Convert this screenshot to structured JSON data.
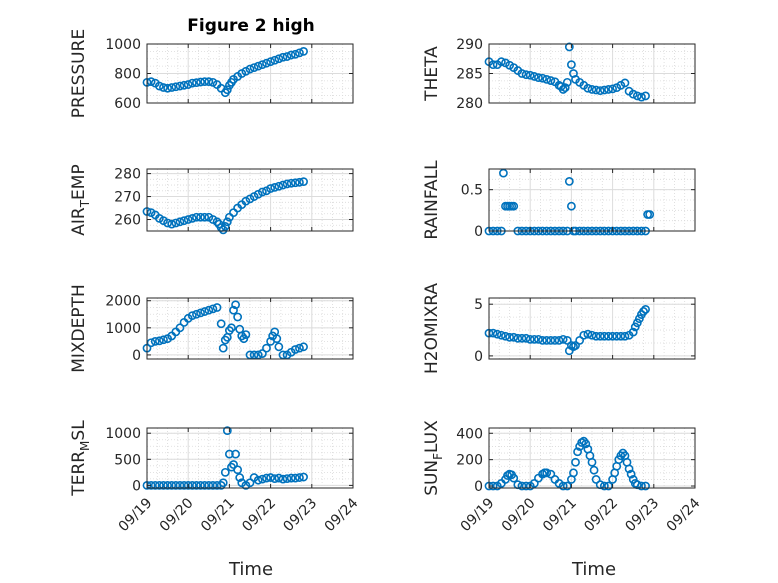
{
  "title": "Figure 2 high",
  "marker_color": "#0072BD",
  "x_tick_labels": [
    "09/19",
    "09/20",
    "09/21",
    "09/22",
    "09/23",
    "09/24"
  ],
  "chart_data": [
    {
      "type": "scatter",
      "name": "pressure",
      "title": "Figure 2 high",
      "ylabel": "PRESSURE",
      "ylim": [
        600,
        1000
      ],
      "yticks": [
        600,
        800,
        1000
      ],
      "ytick_labels": [
        "600",
        "800",
        "1000"
      ],
      "xlim": [
        0,
        5
      ],
      "grid": true,
      "x": [
        0,
        0.1,
        0.2,
        0.3,
        0.4,
        0.5,
        0.6,
        0.7,
        0.8,
        0.9,
        1.0,
        1.1,
        1.2,
        1.3,
        1.4,
        1.5,
        1.6,
        1.7,
        1.8,
        1.9,
        1.95,
        2.0,
        2.05,
        2.1,
        2.2,
        2.3,
        2.4,
        2.5,
        2.6,
        2.7,
        2.8,
        2.9,
        3.0,
        3.1,
        3.2,
        3.3,
        3.4,
        3.5,
        3.6,
        3.7,
        3.8
      ],
      "y": [
        740,
        745,
        735,
        715,
        705,
        700,
        705,
        710,
        715,
        720,
        725,
        735,
        738,
        742,
        745,
        745,
        740,
        725,
        700,
        670,
        690,
        720,
        740,
        760,
        780,
        800,
        815,
        830,
        840,
        850,
        860,
        870,
        880,
        890,
        900,
        910,
        915,
        925,
        930,
        940,
        950
      ]
    },
    {
      "type": "scatter",
      "name": "theta",
      "ylabel": "THETA",
      "ylim": [
        280,
        290
      ],
      "yticks": [
        280,
        285,
        290
      ],
      "ytick_labels": [
        "280",
        "285",
        "290"
      ],
      "xlim": [
        0,
        5
      ],
      "grid": true,
      "x": [
        0,
        0.1,
        0.2,
        0.3,
        0.4,
        0.5,
        0.6,
        0.7,
        0.8,
        0.9,
        1.0,
        1.1,
        1.2,
        1.3,
        1.4,
        1.5,
        1.6,
        1.7,
        1.75,
        1.8,
        1.85,
        1.9,
        1.95,
        2.0,
        2.05,
        2.1,
        2.2,
        2.3,
        2.4,
        2.5,
        2.6,
        2.7,
        2.8,
        2.9,
        3.0,
        3.1,
        3.2,
        3.3,
        3.4,
        3.5,
        3.6,
        3.7,
        3.8
      ],
      "y": [
        287,
        286.5,
        286.5,
        287,
        286.8,
        286.4,
        286,
        285.5,
        285,
        284.8,
        284.7,
        284.5,
        284.3,
        284.2,
        284,
        283.8,
        283.6,
        283,
        282.8,
        282.3,
        282.6,
        283.5,
        289.5,
        286.5,
        285,
        284,
        283.5,
        283,
        282.5,
        282.3,
        282.2,
        282.1,
        282.2,
        282.3,
        282.4,
        282.6,
        283,
        283.4,
        282,
        281.5,
        281.2,
        281,
        281.2
      ]
    },
    {
      "type": "scatter",
      "name": "air_temp",
      "ylabel": "AIR",
      "ylabel_sub": "T",
      "ylabel_tail": "EMP",
      "ylim": [
        255,
        282
      ],
      "yticks": [
        260,
        270,
        280
      ],
      "ytick_labels": [
        "260",
        "270",
        "280"
      ],
      "xlim": [
        0,
        5
      ],
      "grid": true,
      "x": [
        0,
        0.1,
        0.2,
        0.3,
        0.4,
        0.5,
        0.6,
        0.7,
        0.8,
        0.9,
        1.0,
        1.1,
        1.2,
        1.3,
        1.4,
        1.5,
        1.6,
        1.7,
        1.75,
        1.8,
        1.85,
        1.9,
        1.95,
        2.0,
        2.1,
        2.2,
        2.3,
        2.4,
        2.5,
        2.6,
        2.7,
        2.8,
        2.9,
        3.0,
        3.1,
        3.2,
        3.3,
        3.4,
        3.5,
        3.6,
        3.7,
        3.8
      ],
      "y": [
        263.5,
        263,
        262,
        260.5,
        259.5,
        258.5,
        258,
        258.5,
        259,
        259.5,
        260,
        260.5,
        261,
        261,
        261,
        261,
        260,
        259,
        258,
        256.5,
        255.5,
        257,
        259,
        261,
        263,
        265,
        266.5,
        268,
        269,
        270,
        271,
        272,
        272.5,
        273.5,
        274,
        274.5,
        275,
        275.5,
        275.8,
        276,
        276.2,
        276.5
      ]
    },
    {
      "type": "scatter",
      "name": "rainfall",
      "ylabel": "RAINFALL",
      "ylim": [
        0,
        0.75
      ],
      "yticks": [
        0,
        0.5
      ],
      "ytick_labels": [
        "0",
        "0.5"
      ],
      "xlim": [
        0,
        5
      ],
      "grid": true,
      "x": [
        0,
        0.1,
        0.2,
        0.3,
        0.35,
        0.4,
        0.45,
        0.5,
        0.55,
        0.6,
        0.7,
        0.8,
        0.9,
        1.0,
        1.1,
        1.2,
        1.3,
        1.4,
        1.5,
        1.6,
        1.7,
        1.8,
        1.9,
        1.95,
        2.0,
        2.05,
        2.1,
        2.2,
        2.3,
        2.4,
        2.5,
        2.6,
        2.7,
        2.8,
        2.9,
        3.0,
        3.1,
        3.2,
        3.3,
        3.4,
        3.5,
        3.6,
        3.7,
        3.8,
        3.85,
        3.9
      ],
      "y": [
        0,
        0,
        0,
        0,
        0.7,
        0.3,
        0.3,
        0.3,
        0.3,
        0.3,
        0,
        0,
        0,
        0,
        0,
        0,
        0,
        0,
        0,
        0,
        0,
        0,
        0,
        0.6,
        0.3,
        0,
        0,
        0,
        0,
        0,
        0,
        0,
        0,
        0,
        0,
        0,
        0,
        0,
        0,
        0,
        0,
        0,
        0,
        0,
        0.2,
        0.2
      ]
    },
    {
      "type": "scatter",
      "name": "mixdepth",
      "ylabel": "MIXDEPTH",
      "ylim": [
        -150,
        2100
      ],
      "yticks": [
        0,
        1000,
        2000
      ],
      "ytick_labels": [
        "0",
        "1000",
        "2000"
      ],
      "xlim": [
        0,
        5
      ],
      "grid": true,
      "x": [
        0,
        0.1,
        0.2,
        0.3,
        0.4,
        0.5,
        0.6,
        0.7,
        0.8,
        0.9,
        1.0,
        1.1,
        1.2,
        1.3,
        1.4,
        1.5,
        1.6,
        1.7,
        1.8,
        1.85,
        1.9,
        1.95,
        2.0,
        2.05,
        2.1,
        2.15,
        2.2,
        2.25,
        2.3,
        2.35,
        2.4,
        2.5,
        2.6,
        2.7,
        2.8,
        2.9,
        3.0,
        3.05,
        3.1,
        3.15,
        3.2,
        3.3,
        3.4,
        3.5,
        3.6,
        3.7,
        3.8
      ],
      "y": [
        250,
        450,
        500,
        520,
        560,
        600,
        700,
        850,
        1000,
        1200,
        1350,
        1450,
        1500,
        1550,
        1600,
        1650,
        1700,
        1750,
        1150,
        250,
        550,
        650,
        900,
        1000,
        1650,
        1850,
        1400,
        950,
        700,
        600,
        750,
        0,
        0,
        0,
        50,
        250,
        500,
        700,
        850,
        600,
        300,
        0,
        0,
        100,
        200,
        250,
        300
      ]
    },
    {
      "type": "scatter",
      "name": "h2omixra",
      "ylabel": "H2OMIXRA",
      "ylim": [
        -0.3,
        5.6
      ],
      "yticks": [
        0,
        5
      ],
      "ytick_labels": [
        "0",
        "5"
      ],
      "xlim": [
        0,
        5
      ],
      "grid": true,
      "x": [
        0,
        0.1,
        0.2,
        0.3,
        0.4,
        0.5,
        0.6,
        0.7,
        0.8,
        0.9,
        1.0,
        1.1,
        1.2,
        1.3,
        1.4,
        1.5,
        1.6,
        1.7,
        1.8,
        1.9,
        1.95,
        2.0,
        2.05,
        2.1,
        2.2,
        2.3,
        2.4,
        2.5,
        2.6,
        2.7,
        2.8,
        2.9,
        3.0,
        3.1,
        3.2,
        3.3,
        3.4,
        3.5,
        3.55,
        3.6,
        3.65,
        3.7,
        3.75,
        3.8
      ],
      "y": [
        2.2,
        2.2,
        2.1,
        2,
        1.9,
        1.8,
        1.8,
        1.7,
        1.7,
        1.7,
        1.6,
        1.6,
        1.6,
        1.5,
        1.5,
        1.5,
        1.5,
        1.5,
        1.6,
        1.5,
        0.5,
        1,
        0.9,
        1,
        1.5,
        2,
        2.1,
        2,
        1.9,
        1.9,
        1.9,
        1.9,
        1.9,
        1.9,
        1.9,
        1.9,
        2,
        2.3,
        2.8,
        3.2,
        3.6,
        4,
        4.3,
        4.5
      ]
    },
    {
      "type": "scatter",
      "name": "terr_msl",
      "ylabel": "TERR",
      "ylabel_sub": "M",
      "ylabel_tail": "SL",
      "ylim": [
        -50,
        1100
      ],
      "yticks": [
        0,
        500,
        1000
      ],
      "ytick_labels": [
        "0",
        "500",
        "1000"
      ],
      "xlim": [
        0,
        5
      ],
      "grid": true,
      "x": [
        0,
        0.1,
        0.2,
        0.3,
        0.4,
        0.5,
        0.6,
        0.7,
        0.8,
        0.9,
        1.0,
        1.1,
        1.2,
        1.3,
        1.4,
        1.5,
        1.6,
        1.7,
        1.8,
        1.85,
        1.9,
        1.95,
        2.0,
        2.05,
        2.1,
        2.15,
        2.2,
        2.25,
        2.3,
        2.4,
        2.5,
        2.6,
        2.7,
        2.8,
        2.9,
        3.0,
        3.1,
        3.2,
        3.3,
        3.4,
        3.5,
        3.6,
        3.7,
        3.8
      ],
      "y": [
        0,
        0,
        0,
        0,
        0,
        0,
        0,
        0,
        0,
        0,
        0,
        0,
        0,
        0,
        0,
        0,
        0,
        0,
        0,
        50,
        250,
        1050,
        600,
        350,
        400,
        600,
        300,
        150,
        50,
        0,
        50,
        150,
        100,
        120,
        140,
        150,
        130,
        140,
        120,
        130,
        140,
        140,
        150,
        160
      ]
    },
    {
      "type": "scatter",
      "name": "sun_flux",
      "ylabel": "SUN",
      "ylabel_sub": "F",
      "ylabel_tail": "LUX",
      "ylim": [
        -15,
        440
      ],
      "yticks": [
        0,
        200,
        400
      ],
      "ytick_labels": [
        "0",
        "200",
        "400"
      ],
      "xlim": [
        0,
        5
      ],
      "grid": true,
      "x": [
        0,
        0.1,
        0.2,
        0.3,
        0.4,
        0.45,
        0.5,
        0.55,
        0.6,
        0.7,
        0.8,
        0.9,
        1.0,
        1.1,
        1.2,
        1.3,
        1.35,
        1.4,
        1.5,
        1.6,
        1.7,
        1.8,
        1.9,
        2.0,
        2.05,
        2.1,
        2.15,
        2.2,
        2.25,
        2.3,
        2.35,
        2.4,
        2.45,
        2.5,
        2.55,
        2.6,
        2.7,
        2.8,
        2.9,
        3.0,
        3.05,
        3.1,
        3.15,
        3.2,
        3.25,
        3.3,
        3.35,
        3.4,
        3.45,
        3.5,
        3.55,
        3.6,
        3.7,
        3.8
      ],
      "y": [
        0,
        0,
        0,
        20,
        50,
        80,
        90,
        85,
        60,
        10,
        0,
        0,
        0,
        20,
        60,
        90,
        100,
        100,
        90,
        50,
        20,
        0,
        0,
        50,
        100,
        180,
        260,
        300,
        330,
        340,
        320,
        280,
        230,
        180,
        120,
        50,
        10,
        0,
        0,
        50,
        100,
        150,
        200,
        230,
        250,
        230,
        180,
        130,
        90,
        50,
        20,
        10,
        0,
        0
      ]
    }
  ]
}
